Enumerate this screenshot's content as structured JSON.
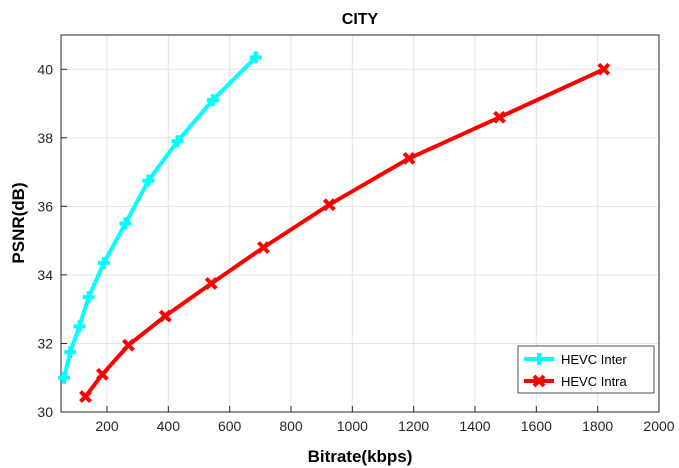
{
  "chart_data": {
    "type": "line",
    "title": "CITY",
    "xlabel": "Bitrate(kbps)",
    "ylabel": "PSNR(dB)",
    "xlim": [
      50,
      2000
    ],
    "ylim": [
      30,
      41
    ],
    "xticks": [
      200,
      400,
      600,
      800,
      1000,
      1200,
      1400,
      1600,
      1800,
      2000
    ],
    "yticks": [
      30,
      32,
      34,
      36,
      38,
      40
    ],
    "grid": true,
    "legend_position": "bottom-right",
    "series": [
      {
        "name": "HEVC Inter",
        "color": "#00ffff",
        "marker": "plus",
        "x": [
          60,
          80,
          110,
          140,
          190,
          260,
          335,
          430,
          545,
          685
        ],
        "y": [
          31.0,
          31.75,
          32.5,
          33.35,
          34.35,
          35.5,
          36.75,
          37.9,
          39.1,
          40.35
        ]
      },
      {
        "name": "HEVC Intra",
        "color": "#ff0000",
        "marker": "x",
        "x": [
          130,
          185,
          270,
          390,
          540,
          710,
          925,
          1185,
          1480,
          1820
        ],
        "y": [
          30.45,
          31.1,
          31.95,
          32.8,
          33.75,
          34.8,
          36.05,
          37.4,
          38.6,
          40.0
        ]
      }
    ]
  }
}
